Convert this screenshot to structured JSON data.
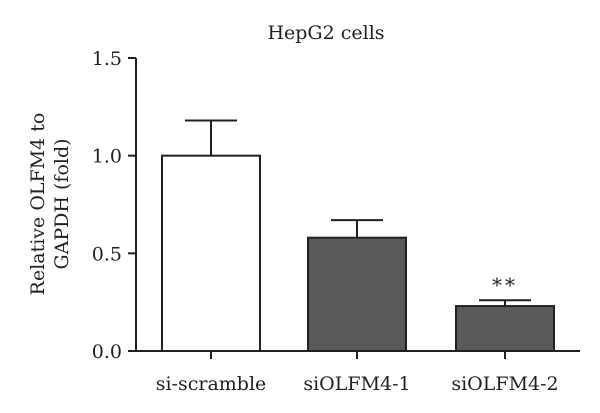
{
  "chart_data": {
    "type": "bar",
    "title": "HepG2 cells",
    "xlabel": "",
    "ylabel": [
      "Relative OLFM4 to",
      "GAPDH (fold)"
    ],
    "ylim": [
      0,
      1.5
    ],
    "yticks": [
      0.0,
      0.5,
      1.0,
      1.5
    ],
    "ytick_labels": [
      "0.0",
      "0.5",
      "1.0",
      "1.5"
    ],
    "categories": [
      "si-scramble",
      "siOLFM4-1",
      "siOLFM4-2"
    ],
    "values": [
      1.0,
      0.58,
      0.23
    ],
    "error_upper": [
      0.18,
      0.09,
      0.03
    ],
    "bar_colors": [
      "#ffffff",
      "#5a5a5a",
      "#5a5a5a"
    ],
    "edge_color": "#231f20",
    "annotations": [
      "",
      "",
      "**"
    ],
    "grid": false,
    "legend": "none"
  }
}
